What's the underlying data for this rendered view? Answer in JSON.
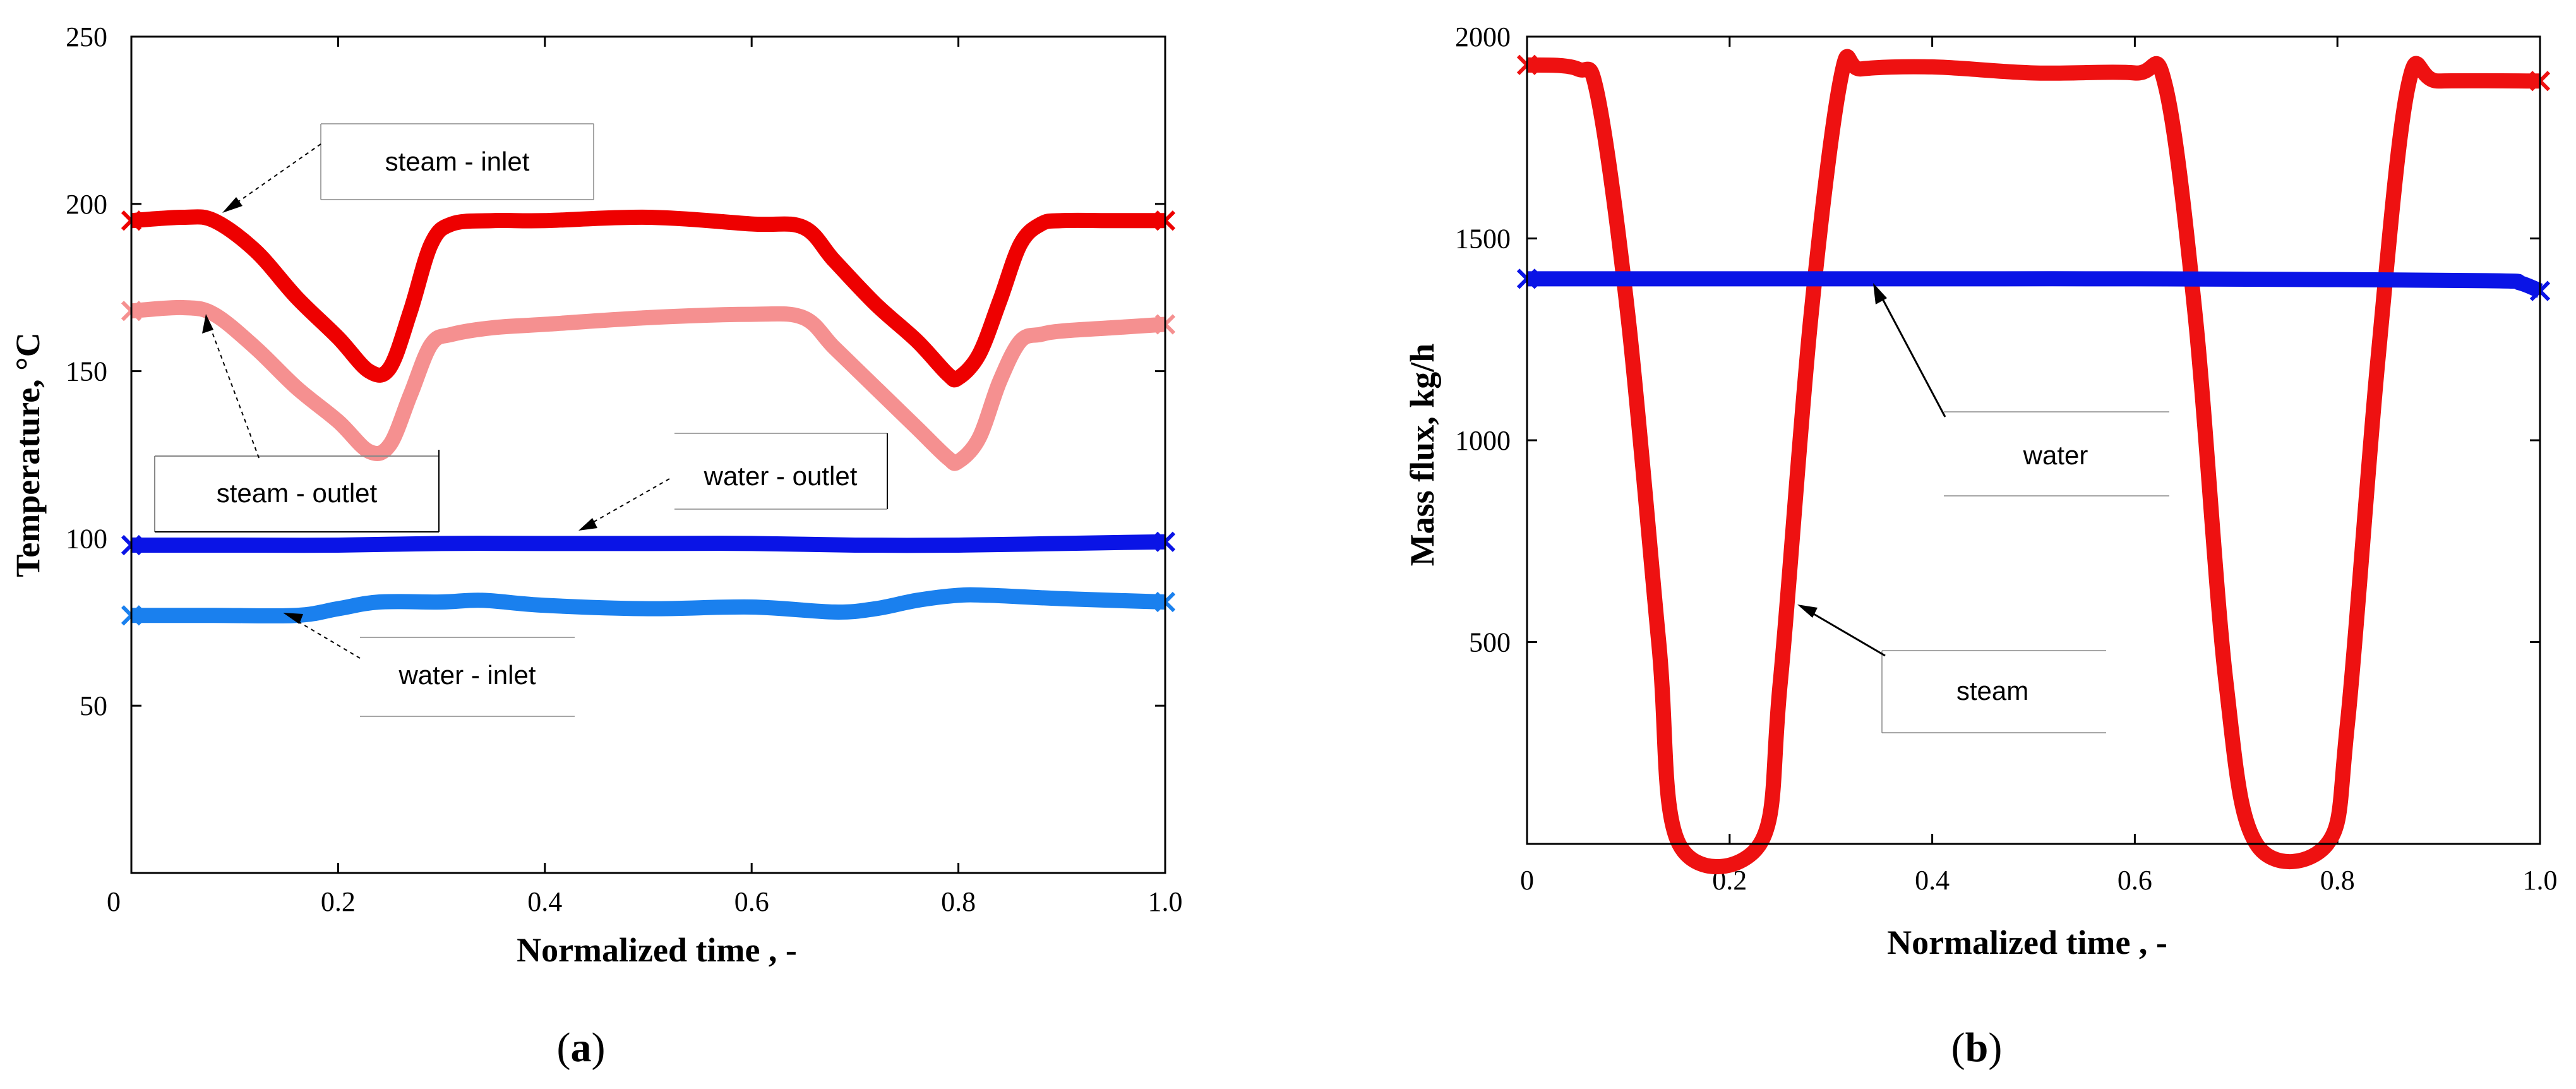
{
  "colors": {
    "steam_inlet": "#ee0000",
    "steam_outlet": "#f59090",
    "water_outlet": "#0a14e6",
    "water_inlet": "#1a80ee",
    "steam_b": "#ee1111",
    "water_b": "#0a14e6"
  },
  "chart_data": [
    {
      "type": "line",
      "panel": "a",
      "caption_prefix": "(",
      "caption_letter": "a",
      "caption_suffix": ")",
      "xlabel": "Normalized time , -",
      "ylabel": "Temperature, °C",
      "xlim": [
        0,
        1.0
      ],
      "ylim": [
        0,
        250
      ],
      "xticks": [
        0.2,
        0.4,
        0.6,
        0.8,
        1.0
      ],
      "xtick_labels": [
        "0.2",
        "0.4",
        "0.6",
        "0.8",
        "1.0"
      ],
      "origin_label": "0",
      "yticks": [
        50,
        100,
        150,
        200,
        250
      ],
      "ytick_labels": [
        "50",
        "100",
        "150",
        "200",
        "250"
      ],
      "series": [
        {
          "name": "steam - inlet",
          "color_key": "steam_inlet",
          "x": [
            0,
            0.05,
            0.08,
            0.12,
            0.16,
            0.2,
            0.23,
            0.25,
            0.27,
            0.29,
            0.31,
            0.35,
            0.4,
            0.5,
            0.6,
            0.65,
            0.68,
            0.72,
            0.76,
            0.79,
            0.8,
            0.82,
            0.84,
            0.86,
            0.88,
            0.9,
            0.95,
            1.0
          ],
          "values": [
            195,
            196,
            195,
            186,
            172,
            160,
            150,
            151,
            168,
            188,
            194,
            195,
            195,
            196,
            194,
            193,
            183,
            170,
            159,
            149,
            148,
            155,
            171,
            188,
            194,
            195,
            195,
            195
          ]
        },
        {
          "name": "steam - outlet",
          "color_key": "steam_outlet",
          "x": [
            0,
            0.05,
            0.08,
            0.12,
            0.16,
            0.2,
            0.23,
            0.25,
            0.27,
            0.29,
            0.31,
            0.35,
            0.4,
            0.5,
            0.6,
            0.65,
            0.68,
            0.72,
            0.76,
            0.79,
            0.8,
            0.82,
            0.84,
            0.86,
            0.88,
            0.9,
            0.95,
            1.0
          ],
          "values": [
            168,
            169,
            167,
            157,
            145,
            135,
            126,
            128,
            143,
            158,
            161,
            163,
            164,
            166,
            167,
            166,
            157,
            145,
            133,
            124,
            123,
            130,
            147,
            159,
            161,
            162,
            163,
            164
          ]
        },
        {
          "name": "water - outlet",
          "color_key": "water_outlet",
          "x": [
            0,
            0.1,
            0.2,
            0.3,
            0.4,
            0.5,
            0.6,
            0.7,
            0.8,
            0.9,
            1.0
          ],
          "values": [
            98,
            98,
            98,
            98.5,
            98.5,
            98.5,
            98.5,
            98,
            98,
            98.5,
            99
          ]
        },
        {
          "name": "water - inlet",
          "color_key": "water_inlet",
          "x": [
            0,
            0.08,
            0.16,
            0.2,
            0.24,
            0.3,
            0.34,
            0.4,
            0.5,
            0.6,
            0.68,
            0.72,
            0.76,
            0.8,
            0.83,
            0.9,
            1.0
          ],
          "values": [
            77,
            77,
            77,
            79,
            81,
            81,
            81.5,
            80,
            79,
            79.5,
            78,
            79,
            81.5,
            83,
            83,
            82,
            81
          ]
        }
      ],
      "annotations": [
        {
          "text": "steam - inlet",
          "x": 0.04,
          "y": 197
        },
        {
          "text": "steam - outlet",
          "x": 0.07,
          "y": 167
        },
        {
          "text": "water - outlet",
          "x": 0.43,
          "y": 99
        },
        {
          "text": "water - inlet",
          "x": 0.15,
          "y": 80
        }
      ]
    },
    {
      "type": "line",
      "panel": "b",
      "caption_prefix": "(",
      "caption_letter": "b",
      "caption_suffix": ")",
      "xlabel": "Normalized time , -",
      "ylabel": "Mass flux, kg/h",
      "xlim": [
        0,
        1.0
      ],
      "ylim": [
        0,
        2000
      ],
      "xticks": [
        0.2,
        0.4,
        0.6,
        0.8,
        1.0
      ],
      "xtick_labels": [
        "0.2",
        "0.4",
        "0.6",
        "0.8",
        "1.0"
      ],
      "origin_label": "0",
      "yticks": [
        500,
        1000,
        1500,
        2000
      ],
      "ytick_labels": [
        "500",
        "1000",
        "1500",
        "2000"
      ],
      "series": [
        {
          "name": "steam",
          "color_key": "steam_b",
          "x": [
            0,
            0.05,
            0.07,
            0.1,
            0.13,
            0.15,
            0.23,
            0.25,
            0.28,
            0.31,
            0.33,
            0.4,
            0.5,
            0.6,
            0.63,
            0.66,
            0.69,
            0.72,
            0.79,
            0.81,
            0.84,
            0.87,
            0.9,
            1.0
          ],
          "values": [
            1930,
            1920,
            1850,
            1300,
            500,
            0,
            0,
            400,
            1300,
            1900,
            1920,
            1925,
            1910,
            1910,
            1880,
            1300,
            400,
            0,
            0,
            300,
            1200,
            1880,
            1890,
            1890
          ]
        },
        {
          "name": "water",
          "color_key": "water_b",
          "x": [
            0,
            0.2,
            0.4,
            0.6,
            0.8,
            0.96,
            0.98,
            1.0
          ],
          "values": [
            1400,
            1400,
            1400,
            1400,
            1398,
            1395,
            1390,
            1370
          ]
        }
      ],
      "annotations": [
        {
          "text": "water",
          "x": 0.34,
          "y": 1400
        },
        {
          "text": "steam",
          "x": 0.27,
          "y": 590
        }
      ]
    }
  ]
}
